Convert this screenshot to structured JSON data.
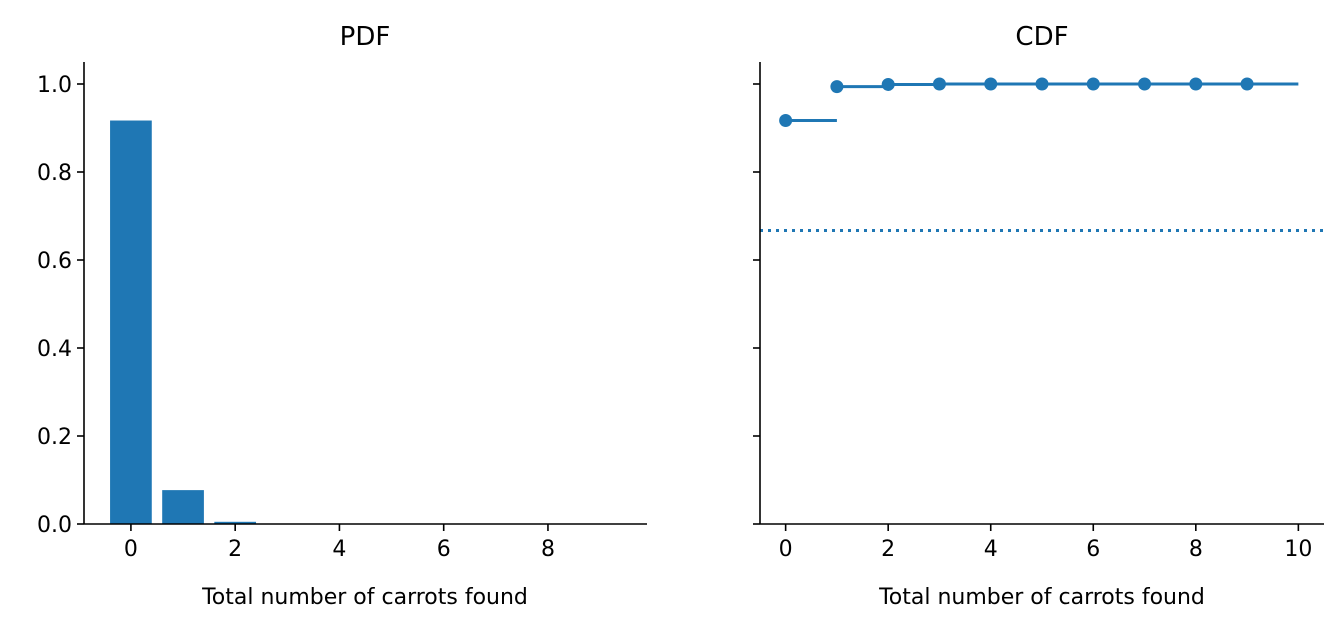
{
  "colors": {
    "series": "#1f77b4",
    "axis": "#000000"
  },
  "chart_data": [
    {
      "type": "bar",
      "title": "PDF",
      "xlabel": "Total number of carrots found",
      "ylabel": "",
      "xlim": [
        -0.9,
        9.9
      ],
      "ylim": [
        0,
        1.05
      ],
      "xticks": [
        0,
        2,
        4,
        6,
        8
      ],
      "xtick_labels": [
        "0",
        "2",
        "4",
        "6",
        "8"
      ],
      "yticks": [
        0,
        0.2,
        0.4,
        0.6,
        0.8,
        1.0
      ],
      "ytick_labels": [
        "0.0",
        "0.2",
        "0.4",
        "0.6",
        "0.8",
        "1.0"
      ],
      "grid": false,
      "categories": [
        0,
        1,
        2,
        3,
        4,
        5,
        6,
        7,
        8,
        9
      ],
      "values": [
        0.917,
        0.077,
        0.005,
        0.0003,
        1e-05,
        0,
        0,
        0,
        0,
        0
      ]
    },
    {
      "type": "line",
      "subtype": "step",
      "title": "CDF",
      "xlabel": "Total number of carrots found",
      "ylabel": "",
      "xlim": [
        -0.5,
        10.5
      ],
      "ylim": [
        0,
        1.05
      ],
      "xticks": [
        0,
        2,
        4,
        6,
        8,
        10
      ],
      "xtick_labels": [
        "0",
        "2",
        "4",
        "6",
        "8",
        "10"
      ],
      "yticks": [
        0,
        0.2,
        0.4,
        0.6,
        0.8,
        1.0
      ],
      "ytick_labels": [
        "",
        "",
        "",
        "",
        "",
        ""
      ],
      "grid": false,
      "x": [
        0,
        1,
        2,
        3,
        4,
        5,
        6,
        7,
        8,
        9
      ],
      "values": [
        0.917,
        0.994,
        0.999,
        1.0,
        1.0,
        1.0,
        1.0,
        1.0,
        1.0,
        1.0
      ],
      "step_end_x": 10,
      "reference_line": {
        "y": 0.667,
        "style": "dotted"
      }
    }
  ]
}
